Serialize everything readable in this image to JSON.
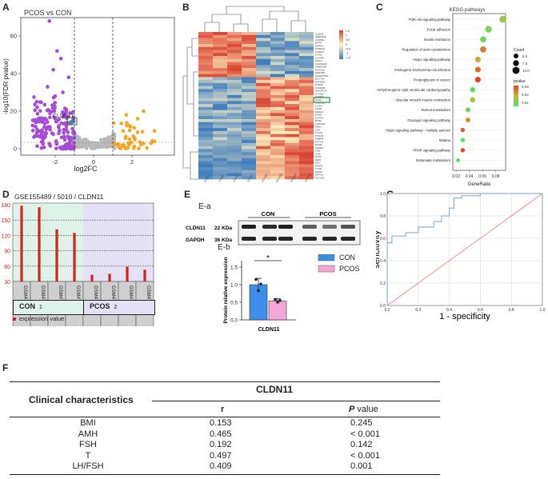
{
  "panel_labels": {
    "A": "A",
    "B": "B",
    "C": "C",
    "D": "D",
    "E": "E",
    "G": "G",
    "F": "F"
  },
  "panelA": {
    "title": "PCOS vs CON",
    "xlabel": "log2FC",
    "ylabel": "-log10(FDR pvalue)",
    "highlight": "CLDN11",
    "xticks": [
      "-2",
      "0",
      "2"
    ],
    "yticks": [
      "0",
      "20",
      "40",
      "60"
    ],
    "colors": {
      "down": "#a64ad8",
      "up": "#f5a623",
      "ns": "#b9b9b9"
    }
  },
  "panelB": {
    "scale_ticks": [
      "1.5",
      "1",
      "0.5",
      "0",
      "-0.5",
      "-1",
      "-1.5"
    ],
    "top_genes": [
      "CLDN4",
      "SERPINB",
      "UQCRQ",
      "KRT8",
      "DPPA3",
      "PTPN12",
      "S100A1",
      "COX5",
      "CXCR4",
      "DSG2",
      "CACNA1D",
      "ANKRD53",
      "HOXA10",
      "PRSS35",
      "ADAMTS18"
    ],
    "bottom_genes": [
      "SLC7A5",
      "MTHFD2",
      "HSPA5",
      "GADD45",
      "ANGPTL4",
      "CCND2",
      "IGFBP3",
      "KLF9",
      "CLDN11",
      "VCAN",
      "SOX9",
      "NR4A2",
      "EGR1",
      "GATA4",
      "HAS2",
      "TSPAN8",
      "FBN1",
      "LOX",
      "ITGA5",
      "PTGS2",
      "CEBPB",
      "ACTN1",
      "DUSP",
      "VEGFA",
      "FOS",
      "JUN",
      "ATF3",
      "IER3",
      "MYC",
      "NR2F2",
      "CTGF",
      "RGS2",
      "KRT19",
      "SLC2A1"
    ],
    "samples": [
      "CON1",
      "CON2",
      "CON3",
      "CON4",
      "PCOS1",
      "PCOS2",
      "PCOS3",
      "PCOS4"
    ]
  },
  "panelC": {
    "title": "KEGG-pathways",
    "xlabel": "GeneRatio",
    "xticks": [
      "0.02",
      "0.04",
      "0.06",
      "0.08"
    ],
    "legend_count_title": "Count",
    "legend_count": [
      "5.0",
      "7.5",
      "10.0"
    ],
    "legend_pval_title": "pvalue",
    "legend_pval": [
      "0.03",
      "0.02",
      "0.01"
    ],
    "chart_data": {
      "type": "scatter",
      "title": "KEGG-pathways",
      "xlabel": "GeneRatio",
      "xlim": [
        0.015,
        0.095
      ],
      "pathways": [
        {
          "name": "PI3K-Akt signaling pathway",
          "ratio": 0.091,
          "count": 10,
          "pvalue": 0.012
        },
        {
          "name": "Focal adhesion",
          "ratio": 0.069,
          "count": 9,
          "pvalue": 0.008
        },
        {
          "name": "Insulin resistance",
          "ratio": 0.061,
          "count": 8,
          "pvalue": 0.006
        },
        {
          "name": "Regulation of actin cytoskeleton",
          "ratio": 0.061,
          "count": 8,
          "pvalue": 0.024
        },
        {
          "name": "Hippo signaling pathway",
          "ratio": 0.053,
          "count": 7,
          "pvalue": 0.018
        },
        {
          "name": "Pathogenic Escherichia coli infection",
          "ratio": 0.053,
          "count": 7,
          "pvalue": 0.026
        },
        {
          "name": "Proteoglycans in cancer",
          "ratio": 0.053,
          "count": 7,
          "pvalue": 0.031
        },
        {
          "name": "Arrhythmogenic right ventricular cardiomyopathy",
          "ratio": 0.045,
          "count": 6,
          "pvalue": 0.005
        },
        {
          "name": "Vascular smooth muscle contraction",
          "ratio": 0.045,
          "count": 6,
          "pvalue": 0.014
        },
        {
          "name": "Retinol metabolism",
          "ratio": 0.038,
          "count": 5,
          "pvalue": 0.007
        },
        {
          "name": "Glucagon signaling pathway",
          "ratio": 0.038,
          "count": 5,
          "pvalue": 0.022
        },
        {
          "name": "Hippo signaling pathway - multiple species",
          "ratio": 0.03,
          "count": 4,
          "pvalue": 0.028
        },
        {
          "name": "Malaria",
          "ratio": 0.03,
          "count": 4,
          "pvalue": 0.004
        },
        {
          "name": "PPAR signaling pathway",
          "ratio": 0.03,
          "count": 4,
          "pvalue": 0.03
        },
        {
          "name": "Butanoate metabolism",
          "ratio": 0.023,
          "count": 3,
          "pvalue": 0.003
        }
      ]
    }
  },
  "panelD": {
    "title": "GSE155489 / 5010 / CLDN11",
    "yticks": [
      "30",
      "60",
      "90",
      "120",
      "150",
      "180"
    ],
    "group_con": "CON",
    "group_con_num": "1",
    "group_pcos": "PCOS",
    "group_pcos_num": "2",
    "legend": "expression value",
    "chart_data": {
      "type": "bar",
      "title": "GSE155489 / 5010 / CLDN11",
      "categories": [
        "GSM4705199",
        "GSM4705200",
        "GSM4705201",
        "GSM4705202",
        "GSM4705203",
        "GSM4705204",
        "GSM4705205",
        "GSM4705206"
      ],
      "values": [
        178,
        175,
        132,
        125,
        43,
        45,
        59,
        53
      ],
      "groups": [
        "CON",
        "CON",
        "CON",
        "CON",
        "PCOS",
        "PCOS",
        "PCOS",
        "PCOS"
      ],
      "ylim": [
        30,
        180
      ]
    }
  },
  "panelE": {
    "sub_a": "E-a",
    "sub_b": "E-b",
    "con": "CON",
    "pcos": "PCOS",
    "cldn11": "CLDN11",
    "cldn11_kda": "22 KDa",
    "gapdh": "GAPDH",
    "gapdh_kda": "36 KDa",
    "ylabel": "Protein relative expression",
    "xlabel": "CLDN11",
    "yticks": [
      "0.0",
      "0.5",
      "1.0",
      "1.5"
    ],
    "sig": "*",
    "legend": [
      "CON",
      "PCOS"
    ],
    "colors": {
      "con": "#3d8ee8",
      "pcos": "#f4a6d8"
    },
    "chart_data": {
      "type": "bar",
      "categories": [
        "CON",
        "PCOS"
      ],
      "values": [
        1.0,
        0.54
      ],
      "errors": [
        0.18,
        0.06
      ],
      "points": [
        [
          1.15,
          0.83,
          1.02
        ],
        [
          0.58,
          0.5,
          0.55
        ]
      ],
      "ylabel": "Protein relative expression",
      "ylim": [
        0,
        1.5
      ]
    }
  },
  "panelG": {
    "xlabel": "1 - specificity",
    "ylabel": "sencitivity",
    "xticks": [
      "0.0",
      "0.2",
      "0.4",
      "0.6",
      "0.8",
      "1.0"
    ],
    "yticks": [
      "0.0",
      "0.2",
      "0.4",
      "0.6",
      "0.8",
      "1.0"
    ],
    "chart_data": {
      "type": "line",
      "xlabel": "1 - specificity",
      "ylabel": "sencitivity",
      "xlim": [
        0,
        1
      ],
      "ylim": [
        0,
        1
      ],
      "series": [
        {
          "name": "ROC",
          "x": [
            0,
            0,
            0.03,
            0.03,
            0.12,
            0.12,
            0.2,
            0.2,
            0.3,
            0.3,
            0.35,
            0.35,
            0.4,
            0.4,
            0.43,
            0.43,
            0.48,
            0.48,
            0.6,
            0.6,
            1.0
          ],
          "y": [
            0,
            0.56,
            0.56,
            0.62,
            0.62,
            0.65,
            0.65,
            0.7,
            0.7,
            0.75,
            0.75,
            0.8,
            0.8,
            0.87,
            0.87,
            0.96,
            0.96,
            0.98,
            0.98,
            1.0,
            1.0
          ]
        },
        {
          "name": "Reference",
          "x": [
            0,
            1
          ],
          "y": [
            0,
            1
          ]
        }
      ]
    }
  },
  "panelF": {
    "head_left": "Clinical characteristics",
    "head_group": "CLDN11",
    "col_r": "r",
    "col_p": "P",
    "col_p_suffix": " value",
    "rows": [
      {
        "name": "BMI",
        "r": "0.153",
        "p": "0.245"
      },
      {
        "name": "AMH",
        "r": "0.465",
        "p": "< 0.001"
      },
      {
        "name": "FSH",
        "r": "0.192",
        "p": "0.142"
      },
      {
        "name": "T",
        "r": "0.497",
        "p": "< 0.001"
      },
      {
        "name": "LH/FSH",
        "r": "0.409",
        "p": "0.001"
      }
    ]
  }
}
